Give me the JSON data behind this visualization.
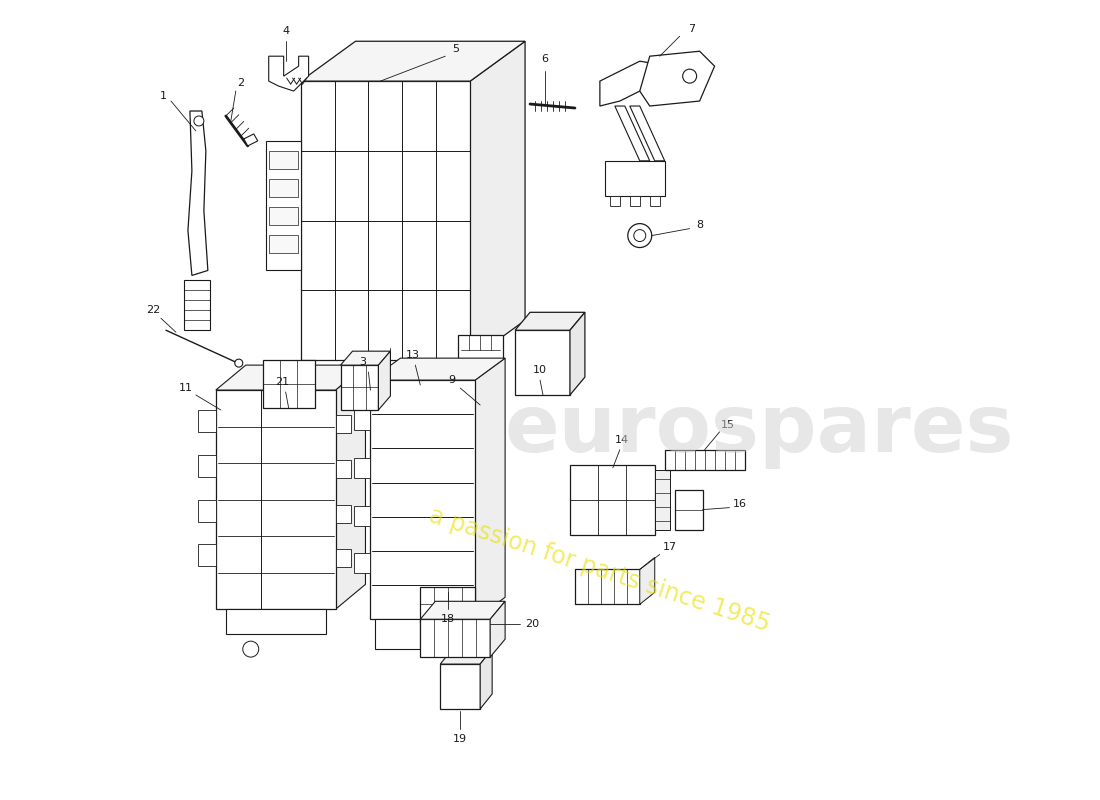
{
  "background_color": "#ffffff",
  "line_color": "#1a1a1a",
  "watermark1": "eurospares",
  "watermark2": "a passion for parts since 1985",
  "figsize": [
    11.0,
    8.0
  ],
  "dpi": 100
}
